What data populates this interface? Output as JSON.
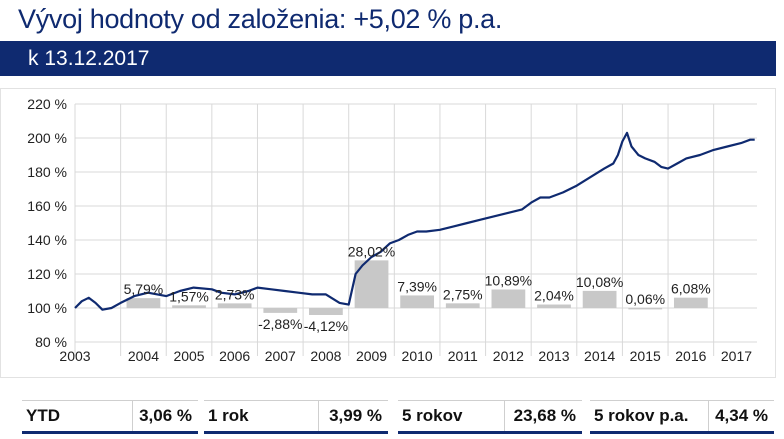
{
  "header": {
    "title": "Vývoj hodnoty od založenia: +5,02 % p.a.",
    "date": "k 13.12.2017"
  },
  "colors": {
    "navy": "#0f2a70",
    "bar": "#c8c8c8",
    "grid": "#d9d9d9"
  },
  "stats": [
    {
      "label": "YTD",
      "value": "3,06 %"
    },
    {
      "label": "1 rok",
      "value": "3,99 %"
    },
    {
      "label": "5 rokov",
      "value": "23,68 %"
    },
    {
      "label": "5 rokov p.a.",
      "value": "4,34 %"
    }
  ],
  "chart_data": {
    "type": "bar+line",
    "title": "",
    "xlabel": "",
    "ylabel": "",
    "ylim": [
      80,
      220
    ],
    "ytick_labels": [
      "80 %",
      "100 %",
      "120 %",
      "140 %",
      "160 %",
      "180 %",
      "200 %",
      "220 %"
    ],
    "yticks": [
      80,
      100,
      120,
      140,
      160,
      180,
      200,
      220
    ],
    "xlim": [
      2003.0,
      2017.95
    ],
    "x_tick_labels": [
      "2003",
      "2004",
      "2005",
      "2006",
      "2007",
      "2008",
      "2009",
      "2010",
      "2011",
      "2012",
      "2013",
      "2014",
      "2015",
      "2016",
      "2017"
    ],
    "grid": {
      "horizontal": true,
      "vertical": true
    },
    "bars": {
      "baseline": 100,
      "categories": [
        "2004",
        "2005",
        "2006",
        "2007",
        "2008",
        "2009",
        "2010",
        "2011",
        "2012",
        "2013",
        "2014",
        "2015",
        "2016"
      ],
      "values": [
        5.79,
        1.57,
        2.73,
        -2.88,
        -4.12,
        28.02,
        7.39,
        2.75,
        10.89,
        2.04,
        10.08,
        0.06,
        6.08
      ],
      "labels": [
        "5,79%",
        "1,57%",
        "2,73%",
        "-2,88%",
        "-4,12%",
        "28,02%",
        "7,39%",
        "2,75%",
        "10,89%",
        "2,04%",
        "10,08%",
        "0,06%",
        "6,08%"
      ]
    },
    "line": {
      "x": [
        2003.0,
        2003.15,
        2003.3,
        2003.45,
        2003.6,
        2003.8,
        2004.0,
        2004.3,
        2004.6,
        2005.0,
        2005.3,
        2005.6,
        2006.0,
        2006.2,
        2006.5,
        2006.8,
        2007.0,
        2007.3,
        2007.6,
        2007.9,
        2008.2,
        2008.5,
        2008.8,
        2009.0,
        2009.15,
        2009.3,
        2009.5,
        2009.7,
        2009.9,
        2010.1,
        2010.3,
        2010.5,
        2010.7,
        2011.0,
        2011.3,
        2011.6,
        2011.9,
        2012.2,
        2012.5,
        2012.8,
        2013.0,
        2013.2,
        2013.4,
        2013.7,
        2014.0,
        2014.3,
        2014.6,
        2014.8,
        2014.9,
        2015.0,
        2015.1,
        2015.2,
        2015.35,
        2015.5,
        2015.7,
        2015.85,
        2016.0,
        2016.2,
        2016.4,
        2016.7,
        2017.0,
        2017.3,
        2017.6,
        2017.8,
        2017.9
      ],
      "y": [
        100,
        104,
        106,
        103,
        99,
        100,
        103,
        107,
        109,
        107,
        110,
        112,
        111,
        109,
        108,
        110,
        112,
        111,
        110,
        109,
        108,
        108,
        103,
        102,
        120,
        125,
        130,
        133,
        138,
        140,
        143,
        145,
        145,
        146,
        148,
        150,
        152,
        154,
        156,
        158,
        162,
        165,
        165,
        168,
        172,
        177,
        182,
        185,
        190,
        198,
        203,
        195,
        190,
        188,
        186,
        183,
        182,
        185,
        188,
        190,
        193,
        195,
        197,
        199,
        199
      ],
      "color": "#0f2a70"
    }
  }
}
